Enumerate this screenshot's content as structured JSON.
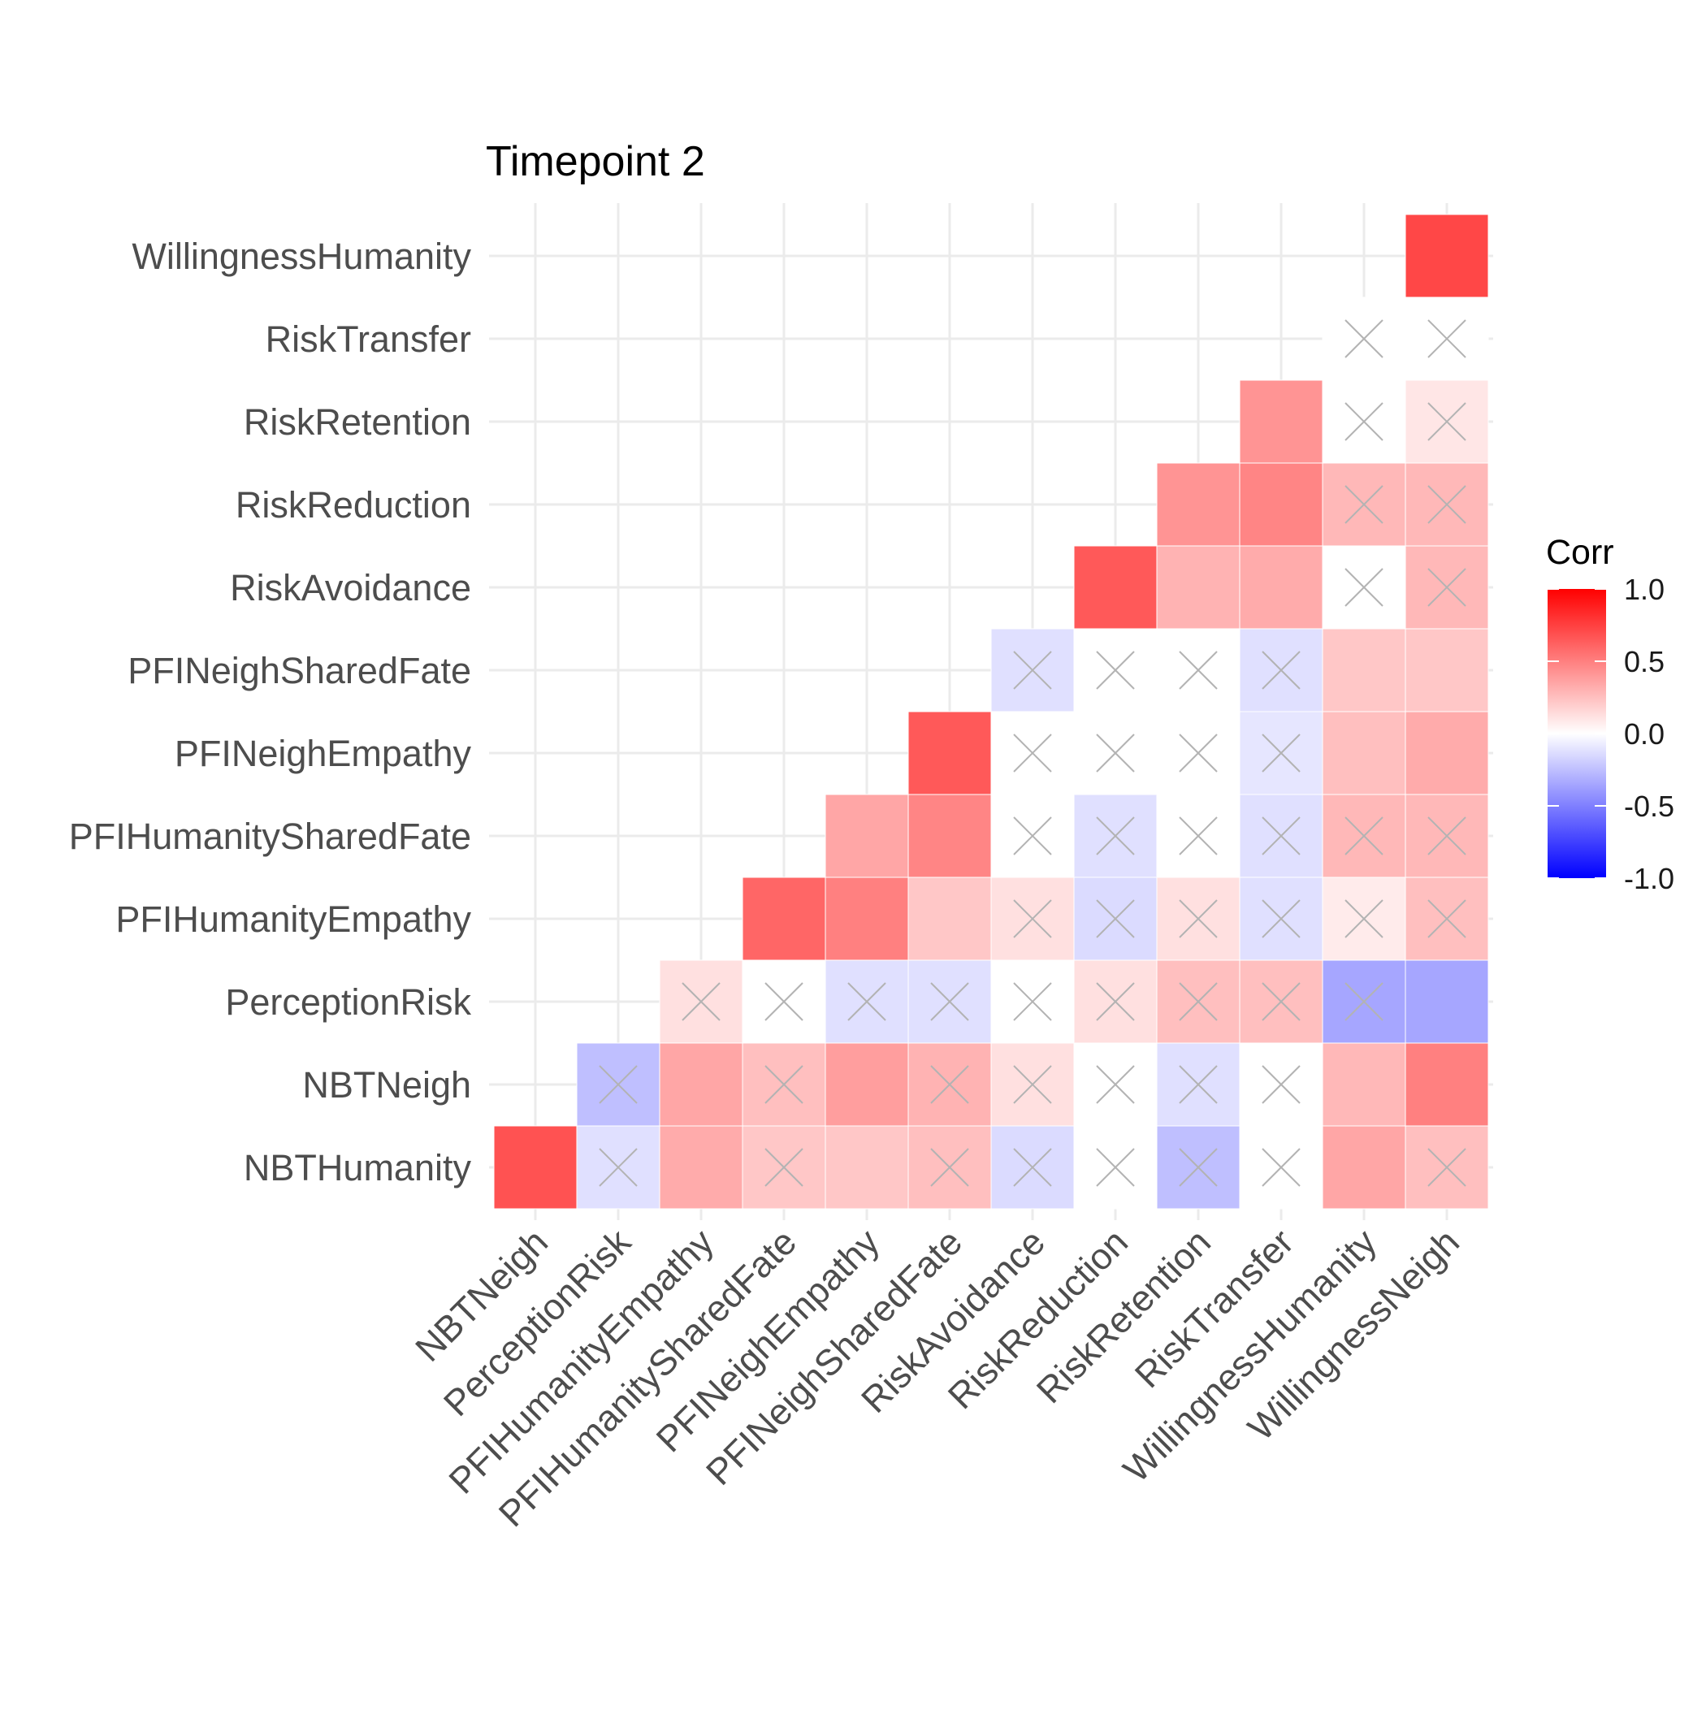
{
  "chart_data": {
    "type": "heatmap",
    "title": "Timepoint 2",
    "x_categories": [
      "NBTNeigh",
      "PerceptionRisk",
      "PFIHumanityEmpathy",
      "PFIHumanitySharedFate",
      "PFINeighEmpathy",
      "PFINeighSharedFate",
      "RiskAvoidance",
      "RiskReduction",
      "RiskRetention",
      "RiskTransfer",
      "WillingnessHumanity",
      "WillingnessNeigh"
    ],
    "y_categories": [
      "NBTHumanity",
      "NBTNeigh",
      "PerceptionRisk",
      "PFIHumanityEmpathy",
      "PFIHumanitySharedFate",
      "PFINeighEmpathy",
      "PFINeighSharedFate",
      "RiskAvoidance",
      "RiskReduction",
      "RiskRetention",
      "RiskTransfer",
      "WillingnessHumanity"
    ],
    "cells": [
      {
        "x": "NBTNeigh",
        "y": "NBTHumanity",
        "value": 0.68,
        "nonsignificant": false
      },
      {
        "x": "PerceptionRisk",
        "y": "NBTHumanity",
        "value": -0.12,
        "nonsignificant": true
      },
      {
        "x": "PFIHumanityEmpathy",
        "y": "NBTHumanity",
        "value": 0.33,
        "nonsignificant": false
      },
      {
        "x": "PFIHumanitySharedFate",
        "y": "NBTHumanity",
        "value": 0.22,
        "nonsignificant": true
      },
      {
        "x": "PFINeighEmpathy",
        "y": "NBTHumanity",
        "value": 0.22,
        "nonsignificant": false
      },
      {
        "x": "PFINeighSharedFate",
        "y": "NBTHumanity",
        "value": 0.25,
        "nonsignificant": true
      },
      {
        "x": "RiskAvoidance",
        "y": "NBTHumanity",
        "value": -0.14,
        "nonsignificant": true
      },
      {
        "x": "RiskReduction",
        "y": "NBTHumanity",
        "value": 0.0,
        "nonsignificant": true
      },
      {
        "x": "RiskRetention",
        "y": "NBTHumanity",
        "value": -0.25,
        "nonsignificant": true
      },
      {
        "x": "RiskTransfer",
        "y": "NBTHumanity",
        "value": 0.0,
        "nonsignificant": true
      },
      {
        "x": "WillingnessHumanity",
        "y": "NBTHumanity",
        "value": 0.35,
        "nonsignificant": false
      },
      {
        "x": "WillingnessNeigh",
        "y": "NBTHumanity",
        "value": 0.25,
        "nonsignificant": true
      },
      {
        "x": "PerceptionRisk",
        "y": "NBTNeigh",
        "value": -0.25,
        "nonsignificant": true
      },
      {
        "x": "PFIHumanityEmpathy",
        "y": "NBTNeigh",
        "value": 0.35,
        "nonsignificant": false
      },
      {
        "x": "PFIHumanitySharedFate",
        "y": "NBTNeigh",
        "value": 0.25,
        "nonsignificant": true
      },
      {
        "x": "PFINeighEmpathy",
        "y": "NBTNeigh",
        "value": 0.38,
        "nonsignificant": false
      },
      {
        "x": "PFINeighSharedFate",
        "y": "NBTNeigh",
        "value": 0.3,
        "nonsignificant": true
      },
      {
        "x": "RiskAvoidance",
        "y": "NBTNeigh",
        "value": 0.12,
        "nonsignificant": true
      },
      {
        "x": "RiskReduction",
        "y": "NBTNeigh",
        "value": 0.0,
        "nonsignificant": true
      },
      {
        "x": "RiskRetention",
        "y": "NBTNeigh",
        "value": -0.12,
        "nonsignificant": true
      },
      {
        "x": "RiskTransfer",
        "y": "NBTNeigh",
        "value": 0.0,
        "nonsignificant": true
      },
      {
        "x": "WillingnessHumanity",
        "y": "NBTNeigh",
        "value": 0.28,
        "nonsignificant": false
      },
      {
        "x": "WillingnessNeigh",
        "y": "NBTNeigh",
        "value": 0.5,
        "nonsignificant": false
      },
      {
        "x": "PFIHumanityEmpathy",
        "y": "PerceptionRisk",
        "value": 0.12,
        "nonsignificant": true
      },
      {
        "x": "PFIHumanitySharedFate",
        "y": "PerceptionRisk",
        "value": 0.0,
        "nonsignificant": true
      },
      {
        "x": "PFINeighEmpathy",
        "y": "PerceptionRisk",
        "value": -0.12,
        "nonsignificant": true
      },
      {
        "x": "PFINeighSharedFate",
        "y": "PerceptionRisk",
        "value": -0.12,
        "nonsignificant": true
      },
      {
        "x": "RiskAvoidance",
        "y": "PerceptionRisk",
        "value": 0.0,
        "nonsignificant": true
      },
      {
        "x": "RiskReduction",
        "y": "PerceptionRisk",
        "value": 0.12,
        "nonsignificant": true
      },
      {
        "x": "RiskRetention",
        "y": "PerceptionRisk",
        "value": 0.25,
        "nonsignificant": true
      },
      {
        "x": "RiskTransfer",
        "y": "PerceptionRisk",
        "value": 0.25,
        "nonsignificant": true
      },
      {
        "x": "WillingnessHumanity",
        "y": "PerceptionRisk",
        "value": -0.35,
        "nonsignificant": true
      },
      {
        "x": "WillingnessNeigh",
        "y": "PerceptionRisk",
        "value": -0.35,
        "nonsignificant": false
      },
      {
        "x": "PFIHumanitySharedFate",
        "y": "PFIHumanityEmpathy",
        "value": 0.6,
        "nonsignificant": false
      },
      {
        "x": "PFINeighEmpathy",
        "y": "PFIHumanityEmpathy",
        "value": 0.5,
        "nonsignificant": false
      },
      {
        "x": "PFINeighSharedFate",
        "y": "PFIHumanityEmpathy",
        "value": 0.22,
        "nonsignificant": false
      },
      {
        "x": "RiskAvoidance",
        "y": "PFIHumanityEmpathy",
        "value": 0.12,
        "nonsignificant": true
      },
      {
        "x": "RiskReduction",
        "y": "PFIHumanityEmpathy",
        "value": -0.14,
        "nonsignificant": true
      },
      {
        "x": "RiskRetention",
        "y": "PFIHumanityEmpathy",
        "value": 0.12,
        "nonsignificant": true
      },
      {
        "x": "RiskTransfer",
        "y": "PFIHumanityEmpathy",
        "value": -0.12,
        "nonsignificant": true
      },
      {
        "x": "WillingnessHumanity",
        "y": "PFIHumanityEmpathy",
        "value": 0.08,
        "nonsignificant": true
      },
      {
        "x": "WillingnessNeigh",
        "y": "PFIHumanityEmpathy",
        "value": 0.25,
        "nonsignificant": true
      },
      {
        "x": "PFINeighEmpathy",
        "y": "PFIHumanitySharedFate",
        "value": 0.35,
        "nonsignificant": false
      },
      {
        "x": "PFINeighSharedFate",
        "y": "PFIHumanitySharedFate",
        "value": 0.48,
        "nonsignificant": false
      },
      {
        "x": "RiskAvoidance",
        "y": "PFIHumanitySharedFate",
        "value": 0.0,
        "nonsignificant": true
      },
      {
        "x": "RiskReduction",
        "y": "PFIHumanitySharedFate",
        "value": -0.12,
        "nonsignificant": true
      },
      {
        "x": "RiskRetention",
        "y": "PFIHumanitySharedFate",
        "value": 0.0,
        "nonsignificant": true
      },
      {
        "x": "RiskTransfer",
        "y": "PFIHumanitySharedFate",
        "value": -0.12,
        "nonsignificant": true
      },
      {
        "x": "WillingnessHumanity",
        "y": "PFIHumanitySharedFate",
        "value": 0.28,
        "nonsignificant": true
      },
      {
        "x": "WillingnessNeigh",
        "y": "PFIHumanitySharedFate",
        "value": 0.28,
        "nonsignificant": true
      },
      {
        "x": "PFINeighSharedFate",
        "y": "PFINeighEmpathy",
        "value": 0.65,
        "nonsignificant": false
      },
      {
        "x": "RiskAvoidance",
        "y": "PFINeighEmpathy",
        "value": 0.0,
        "nonsignificant": true
      },
      {
        "x": "RiskReduction",
        "y": "PFINeighEmpathy",
        "value": 0.0,
        "nonsignificant": true
      },
      {
        "x": "RiskRetention",
        "y": "PFINeighEmpathy",
        "value": 0.0,
        "nonsignificant": true
      },
      {
        "x": "RiskTransfer",
        "y": "PFINeighEmpathy",
        "value": -0.1,
        "nonsignificant": true
      },
      {
        "x": "WillingnessHumanity",
        "y": "PFINeighEmpathy",
        "value": 0.25,
        "nonsignificant": false
      },
      {
        "x": "WillingnessNeigh",
        "y": "PFINeighEmpathy",
        "value": 0.33,
        "nonsignificant": false
      },
      {
        "x": "RiskAvoidance",
        "y": "PFINeighSharedFate",
        "value": -0.12,
        "nonsignificant": true
      },
      {
        "x": "RiskReduction",
        "y": "PFINeighSharedFate",
        "value": 0.0,
        "nonsignificant": true
      },
      {
        "x": "RiskRetention",
        "y": "PFINeighSharedFate",
        "value": 0.0,
        "nonsignificant": true
      },
      {
        "x": "RiskTransfer",
        "y": "PFINeighSharedFate",
        "value": -0.12,
        "nonsignificant": true
      },
      {
        "x": "WillingnessHumanity",
        "y": "PFINeighSharedFate",
        "value": 0.22,
        "nonsignificant": false
      },
      {
        "x": "WillingnessNeigh",
        "y": "PFINeighSharedFate",
        "value": 0.22,
        "nonsignificant": false
      },
      {
        "x": "RiskReduction",
        "y": "RiskAvoidance",
        "value": 0.65,
        "nonsignificant": false
      },
      {
        "x": "RiskRetention",
        "y": "RiskAvoidance",
        "value": 0.3,
        "nonsignificant": false
      },
      {
        "x": "RiskTransfer",
        "y": "RiskAvoidance",
        "value": 0.33,
        "nonsignificant": false
      },
      {
        "x": "WillingnessHumanity",
        "y": "RiskAvoidance",
        "value": 0.0,
        "nonsignificant": true
      },
      {
        "x": "WillingnessNeigh",
        "y": "RiskAvoidance",
        "value": 0.28,
        "nonsignificant": true
      },
      {
        "x": "RiskRetention",
        "y": "RiskReduction",
        "value": 0.42,
        "nonsignificant": false
      },
      {
        "x": "RiskTransfer",
        "y": "RiskReduction",
        "value": 0.48,
        "nonsignificant": false
      },
      {
        "x": "WillingnessHumanity",
        "y": "RiskReduction",
        "value": 0.28,
        "nonsignificant": true
      },
      {
        "x": "WillingnessNeigh",
        "y": "RiskReduction",
        "value": 0.28,
        "nonsignificant": true
      },
      {
        "x": "RiskTransfer",
        "y": "RiskRetention",
        "value": 0.42,
        "nonsignificant": false
      },
      {
        "x": "WillingnessHumanity",
        "y": "RiskRetention",
        "value": 0.0,
        "nonsignificant": true
      },
      {
        "x": "WillingnessNeigh",
        "y": "RiskRetention",
        "value": 0.1,
        "nonsignificant": true
      },
      {
        "x": "WillingnessHumanity",
        "y": "RiskTransfer",
        "value": 0.0,
        "nonsignificant": true
      },
      {
        "x": "WillingnessNeigh",
        "y": "RiskTransfer",
        "value": 0.0,
        "nonsignificant": true
      },
      {
        "x": "WillingnessNeigh",
        "y": "WillingnessHumanity",
        "value": 0.72,
        "nonsignificant": false
      }
    ],
    "legend": {
      "title": "Corr",
      "position": "right",
      "range": [
        -1.0,
        1.0
      ],
      "ticks": [
        "1.0",
        "0.5",
        "0.0",
        "-0.5",
        "-1.0"
      ],
      "tick_values": [
        1.0,
        0.5,
        0.0,
        -0.5,
        -1.0
      ],
      "colors": {
        "low": "#0000ff",
        "mid": "#ffffff",
        "high": "#ff0000"
      }
    },
    "grid": true,
    "marker_color": "#b3b3b3",
    "grid_color": "#ebebeb"
  }
}
